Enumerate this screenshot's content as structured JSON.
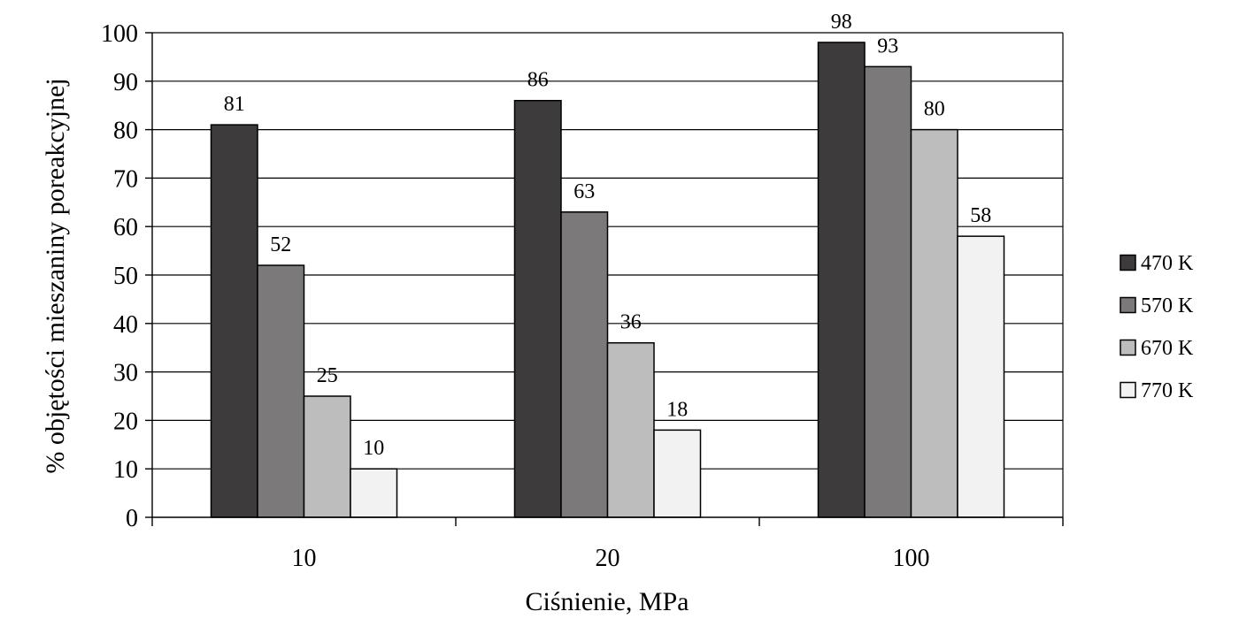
{
  "chart_data": {
    "type": "bar",
    "categories": [
      "10",
      "20",
      "100"
    ],
    "series": [
      {
        "name": "470 K",
        "values": [
          81,
          86,
          98
        ],
        "color": "#3d3b3c"
      },
      {
        "name": "570 K",
        "values": [
          52,
          63,
          93
        ],
        "color": "#7b797a"
      },
      {
        "name": "670 K",
        "values": [
          25,
          36,
          80
        ],
        "color": "#bdbdbd"
      },
      {
        "name": "770 K",
        "values": [
          10,
          18,
          58
        ],
        "color": "#f2f2f2"
      }
    ],
    "title": "",
    "xlabel": "Ciśnienie, MPa",
    "ylabel": "% objętości mieszaniny poreakcyjnej",
    "ylim": [
      0,
      100
    ],
    "yticks": [
      0,
      10,
      20,
      30,
      40,
      50,
      60,
      70,
      80,
      90,
      100
    ],
    "grid": true,
    "data_labels": true,
    "legend_position": "right"
  }
}
